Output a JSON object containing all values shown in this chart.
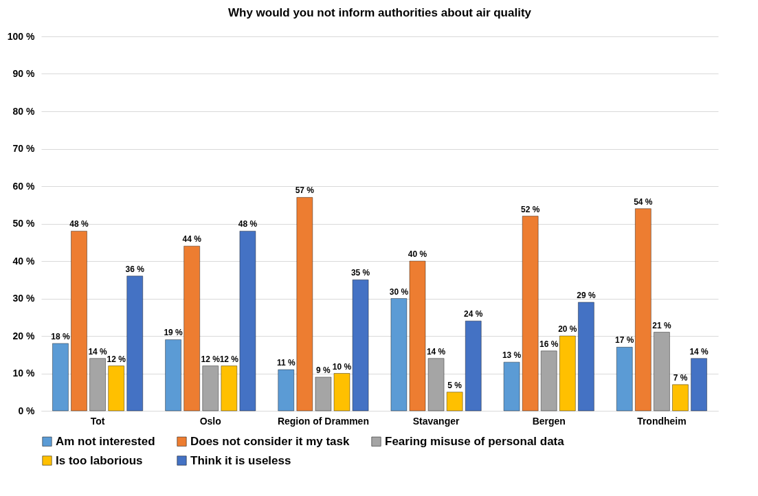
{
  "chart_data": {
    "type": "bar",
    "title": "Why would you not inform authorities about air quality",
    "categories": [
      "Tot",
      "Oslo",
      "Region of Drammen",
      "Stavanger",
      "Bergen",
      "Trondheim"
    ],
    "series": [
      {
        "name": "Am not interested",
        "color": "#5b9bd5",
        "values": [
          18,
          19,
          11,
          30,
          13,
          17
        ],
        "value_labels": [
          "18 %",
          "19 %",
          "11 %",
          "30 %",
          "13 %",
          "17 %"
        ]
      },
      {
        "name": "Does not consider it my task",
        "color": "#ed7d31",
        "values": [
          48,
          44,
          57,
          40,
          52,
          54
        ],
        "value_labels": [
          "48 %",
          "44 %",
          "57 %",
          "40 %",
          "52 %",
          "54 %"
        ]
      },
      {
        "name": "Fearing misuse of personal data",
        "color": "#a5a5a5",
        "values": [
          14,
          12,
          9,
          14,
          16,
          21
        ],
        "value_labels": [
          "14 %",
          "12 %",
          "9 %",
          "14 %",
          "16 %",
          "21 %"
        ]
      },
      {
        "name": "Is too laborious",
        "color": "#ffc000",
        "values": [
          12,
          12,
          10,
          5,
          20,
          7
        ],
        "value_labels": [
          "12 %",
          "12 %",
          "10 %",
          "5 %",
          "20 %",
          "7 %"
        ]
      },
      {
        "name": "Think it is useless",
        "color": "#4472c4",
        "values": [
          36,
          48,
          35,
          24,
          29,
          14
        ],
        "value_labels": [
          "36 %",
          "48 %",
          "35 %",
          "24 %",
          "29 %",
          "14 %"
        ]
      }
    ],
    "ylim": [
      0,
      100
    ],
    "yticks": [
      {
        "value": 0,
        "label": "0 %"
      },
      {
        "value": 10,
        "label": "10 %"
      },
      {
        "value": 20,
        "label": "20 %"
      },
      {
        "value": 30,
        "label": "30 %"
      },
      {
        "value": 40,
        "label": "40 %"
      },
      {
        "value": 50,
        "label": "50 %"
      },
      {
        "value": 60,
        "label": "60 %"
      },
      {
        "value": 70,
        "label": "70 %"
      },
      {
        "value": 80,
        "label": "80 %"
      },
      {
        "value": 90,
        "label": "90 %"
      },
      {
        "value": 100,
        "label": "100 %"
      }
    ],
    "grid": "y",
    "legend": "bottom"
  }
}
